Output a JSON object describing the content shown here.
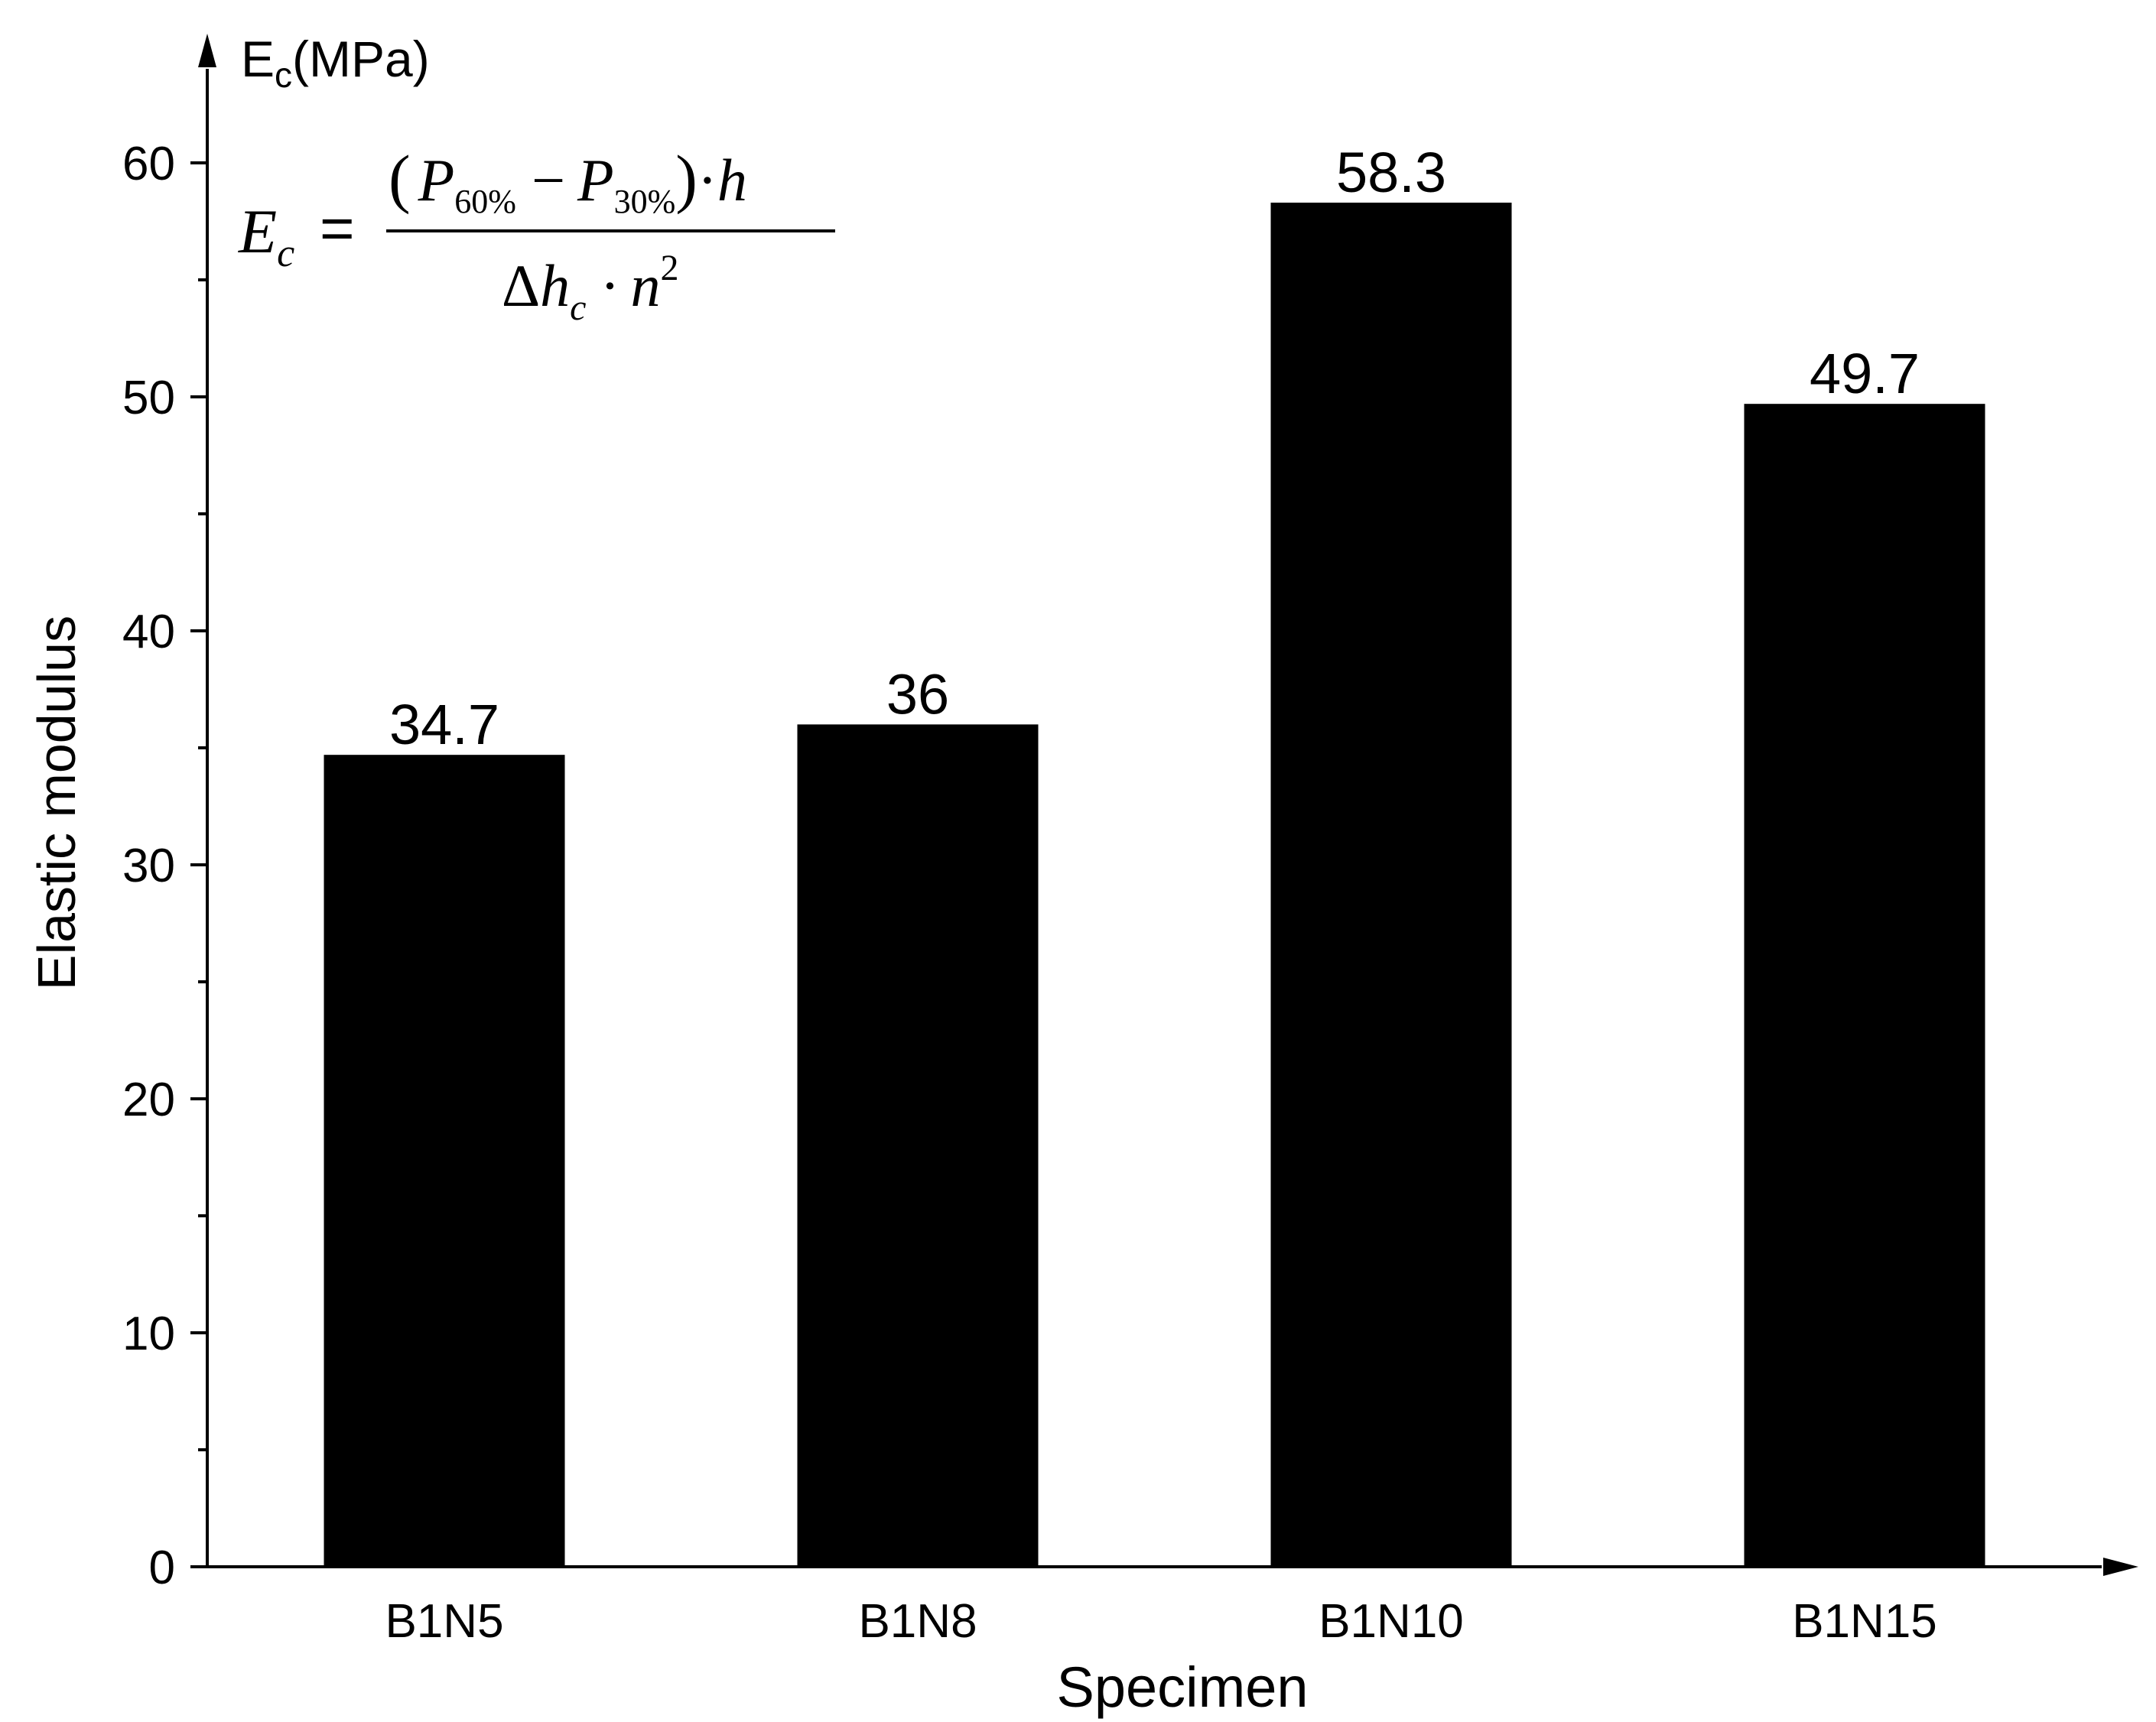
{
  "chart_data": {
    "type": "bar",
    "categories": [
      "B1N5",
      "B1N8",
      "B1N10",
      "B1N15"
    ],
    "values": [
      34.7,
      36,
      58.3,
      49.7
    ],
    "data_labels": [
      "34.7",
      "36",
      "58.3",
      "49.7"
    ],
    "title": "",
    "xlabel": "Specimen",
    "ylabel": "Elastic modulus",
    "yunit_symbol": "E",
    "yunit_subscript": "c",
    "yunit_suffix": "(MPa)",
    "ylim": [
      0,
      65
    ],
    "yticks": [
      0,
      10,
      20,
      30,
      40,
      50,
      60
    ],
    "grid": false,
    "legend": "none",
    "bar_color": "#000000"
  },
  "formula": {
    "lhs": "E",
    "lhs_sub": "c",
    "equals": "=",
    "num_open": "(",
    "p1": "P",
    "p1_sub": "60%",
    "minus": "−",
    "p2": "P",
    "p2_sub": "30%",
    "num_close": ")",
    "dot1": "·",
    "h": "h",
    "den_delta": "Δ",
    "den_h": "h",
    "den_h_sub": "c",
    "dot2": "·",
    "den_n": "n",
    "den_n_sup": "2"
  }
}
